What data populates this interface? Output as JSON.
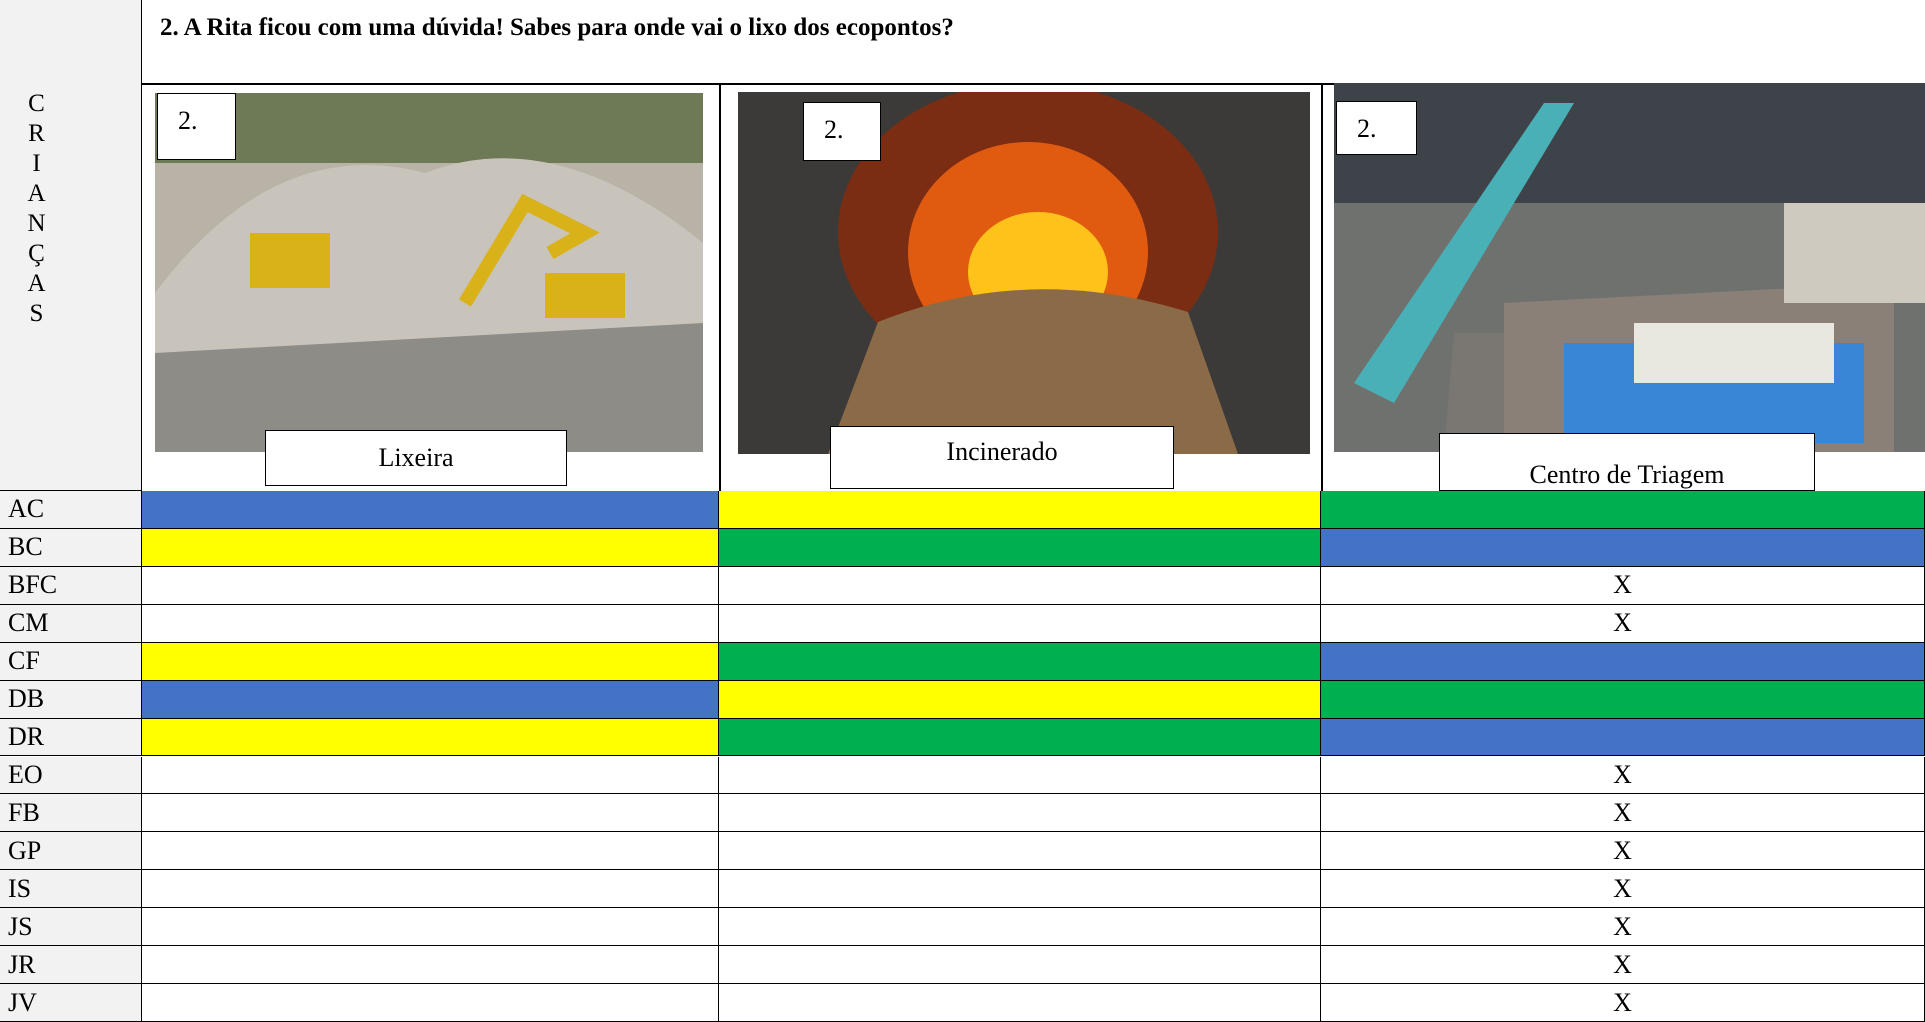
{
  "header": {
    "title": "2. A Rita ficou com uma dúvida! Sabes para onde vai o lixo dos ecopontos?",
    "side_label": "CRIANÇAS",
    "columns": [
      {
        "badge": "2.",
        "caption": "Lixeira"
      },
      {
        "badge": "2.",
        "caption": "Incinerado"
      },
      {
        "badge": "2.",
        "caption": "Centro de Triagem"
      }
    ]
  },
  "table": {
    "rows": [
      {
        "label": "AC",
        "cells": [
          {
            "fill": "#4472c4"
          },
          {
            "fill": "#ffff00"
          },
          {
            "fill": "#00b050"
          }
        ]
      },
      {
        "label": "BC",
        "cells": [
          {
            "fill": "#ffff00"
          },
          {
            "fill": "#00b050"
          },
          {
            "fill": "#4472c4"
          }
        ]
      },
      {
        "label": "BFC",
        "cells": [
          {
            "fill": "#ffffff"
          },
          {
            "fill": "#ffffff"
          },
          {
            "fill": "#ffffff",
            "text": "X"
          }
        ]
      },
      {
        "label": "CM",
        "cells": [
          {
            "fill": "#ffffff"
          },
          {
            "fill": "#ffffff"
          },
          {
            "fill": "#ffffff",
            "text": "X"
          }
        ]
      },
      {
        "label": "CF",
        "cells": [
          {
            "fill": "#ffff00"
          },
          {
            "fill": "#00b050"
          },
          {
            "fill": "#4472c4"
          }
        ]
      },
      {
        "label": "DB",
        "cells": [
          {
            "fill": "#4472c4"
          },
          {
            "fill": "#ffff00"
          },
          {
            "fill": "#00b050"
          }
        ]
      },
      {
        "label": "DR",
        "cells": [
          {
            "fill": "#ffff00"
          },
          {
            "fill": "#00b050"
          },
          {
            "fill": "#4472c4"
          }
        ]
      },
      {
        "label": "EO",
        "cells": [
          {
            "fill": "#ffffff"
          },
          {
            "fill": "#ffffff"
          },
          {
            "fill": "#ffffff",
            "text": "X"
          }
        ]
      },
      {
        "label": "FB",
        "cells": [
          {
            "fill": "#ffffff"
          },
          {
            "fill": "#ffffff"
          },
          {
            "fill": "#ffffff",
            "text": "X"
          }
        ]
      },
      {
        "label": "GP",
        "cells": [
          {
            "fill": "#ffffff"
          },
          {
            "fill": "#ffffff"
          },
          {
            "fill": "#ffffff",
            "text": "X"
          }
        ]
      },
      {
        "label": "IS",
        "cells": [
          {
            "fill": "#ffffff"
          },
          {
            "fill": "#ffffff"
          },
          {
            "fill": "#ffffff",
            "text": "X"
          }
        ]
      },
      {
        "label": "JS",
        "cells": [
          {
            "fill": "#ffffff"
          },
          {
            "fill": "#ffffff"
          },
          {
            "fill": "#ffffff",
            "text": "X"
          }
        ]
      },
      {
        "label": "JR",
        "cells": [
          {
            "fill": "#ffffff"
          },
          {
            "fill": "#ffffff"
          },
          {
            "fill": "#ffffff",
            "text": "X"
          }
        ]
      },
      {
        "label": "JV",
        "cells": [
          {
            "fill": "#ffffff"
          },
          {
            "fill": "#ffffff"
          },
          {
            "fill": "#ffffff",
            "text": "X"
          }
        ]
      }
    ]
  }
}
